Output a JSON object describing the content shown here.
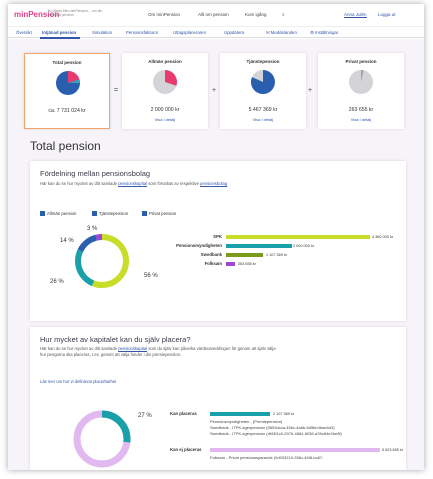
{
  "header": {
    "logo": "minPension",
    "tagline": "En tjänst från minPension... om din framtida pension",
    "nav": [
      "Om minPension",
      "Allt om pension",
      "Kom igång"
    ],
    "user_links": [
      "Anna Julén",
      "Logga ut"
    ]
  },
  "tabs": [
    "Översikt",
    "Intjänad pension",
    "Simulation",
    "Pensionsfakturor",
    "Uttagsplaneraren",
    "Uppdatera",
    "Meddelanden",
    "Inställningar"
  ],
  "summary": [
    {
      "title": "Total pension",
      "value": "ca. 7 731 024 kr",
      "link": "",
      "colors": [
        "#e83a6e",
        "#2a5fb0",
        "#3aa0c0"
      ]
    },
    {
      "title": "Allmän pension",
      "value": "2 000 000 kr",
      "link": "Visa i detalj",
      "colors": [
        "#e83a6e"
      ]
    },
    {
      "title": "Tjänstepension",
      "value": "5 467 369 kr",
      "link": "Visa i detalj",
      "colors": [
        "#2a5fb0"
      ]
    },
    {
      "title": "Privat pension",
      "value": "263 655 kr",
      "link": "Visa i detalj",
      "colors": [
        "#9aa0a8"
      ]
    }
  ],
  "operators": [
    "=",
    "+",
    "+",
    "+"
  ],
  "total_heading": "Total pension",
  "section1": {
    "title": "Fördelning mellan pensionsbolag",
    "desc_pre": "Här kan du se hur mycket av ditt samlade ",
    "desc_link": "pensionskapital",
    "desc_post": " som förvaltas av respektive ",
    "desc_link2": "pensionsbolag",
    "legend": [
      "Allmän pension",
      "Tjänstepension",
      "Privat pension"
    ],
    "donut_pcts": [
      "3 %",
      "14 %",
      "26 %",
      "56 %"
    ],
    "bars": [
      {
        "label": "SPK",
        "value": "4 360 000 kr",
        "amount": 4360000,
        "color": "#c8dc2a"
      },
      {
        "label": "Pensionsmyndigheten",
        "value": "2 000 000 kr",
        "amount": 2000000,
        "color": "#1aa0a8"
      },
      {
        "label": "Swedbank",
        "value": "1 107 369 kr",
        "amount": 1107369,
        "color": "#7a9a1a"
      },
      {
        "label": "Folksam",
        "value": "263 655 kr",
        "amount": 263655,
        "color": "#9a4ad0"
      }
    ]
  },
  "section2": {
    "title": "Hur mycket av kapitalet kan du själv placera?",
    "desc_pre": "Här kan du se hur mycket av ditt samlade ",
    "desc_link": "pensionskapital",
    "desc_post": " som du själv kan påverka värdeutvecklingen för genom att själv välja hur pengarna ska placeras, t.ex. genom att välja fonder i din premiepension.",
    "more_link": "Läs mer om hur vi definierat placerbarhet",
    "donut_pct": "27 %",
    "can_label": "Kan placeras",
    "can_value": "2 107 369 kr",
    "can_lines": [
      "Pensionsmyndigheten - (Premiepension)",
      "Swedbank - ITPK-kgenpension (0893dcca-45bc-4a6b-6d5bb4bad4d3)",
      "Swedbank - ITPK-kgenpension (df43f1c0-2976-4684-8036-a78e84e2be5f)"
    ],
    "cannot_label": "Kan ej placeras",
    "cannot_value": "5 623 655 kr",
    "cannot_lines": [
      "Folksam - Privat pensionssparande (0d003219-256c-4f48-bc87-"
    ]
  }
}
